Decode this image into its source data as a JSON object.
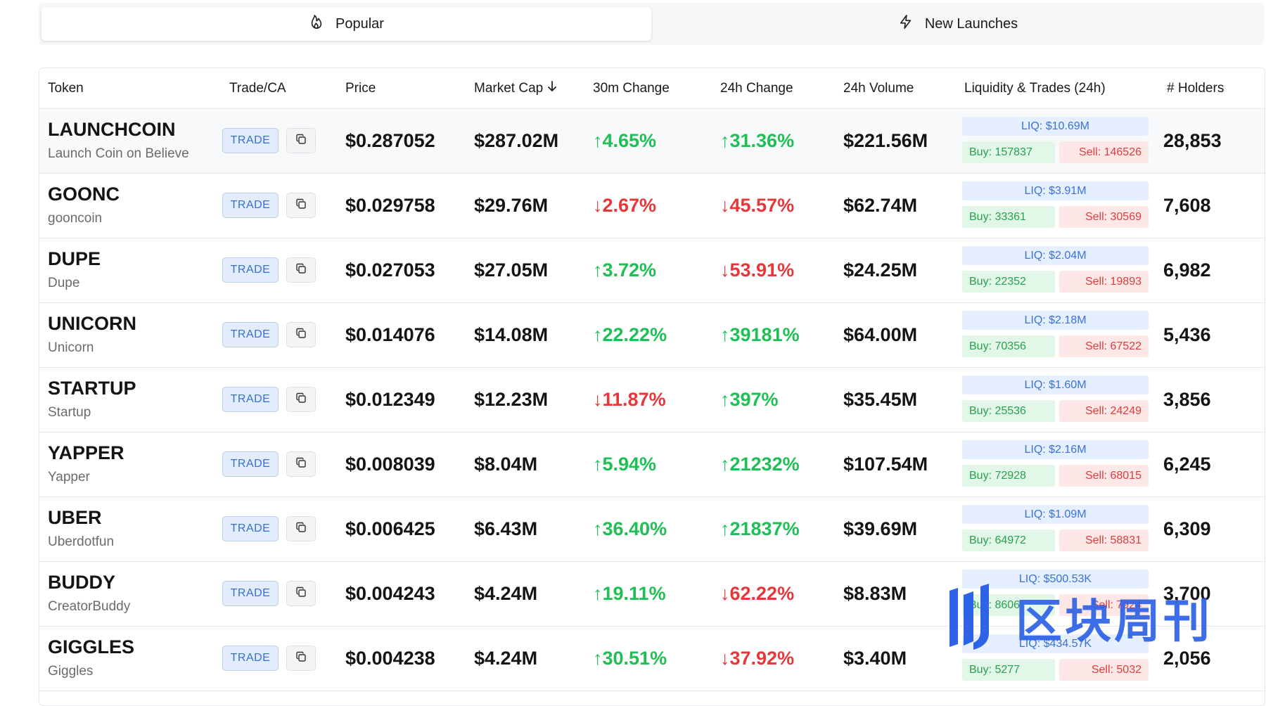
{
  "tabs": [
    {
      "label": "Popular",
      "icon": "flame-icon",
      "active": true
    },
    {
      "label": "New Launches",
      "icon": "lightning-icon",
      "active": false
    }
  ],
  "table": {
    "headers": {
      "token": "Token",
      "trade": "Trade/CA",
      "price": "Price",
      "market_cap": "Market Cap",
      "change_30m": "30m Change",
      "change_24h": "24h Change",
      "volume_24h": "24h Volume",
      "liquidity": "Liquidity & Trades (24h)",
      "holders": "# Holders"
    },
    "sort": {
      "column": "market_cap",
      "direction": "desc"
    },
    "trade_label": "TRADE",
    "rows": [
      {
        "symbol": "LAUNCHCOIN",
        "name": "Launch Coin on Believe",
        "price": "$0.287052",
        "market_cap": "$287.02M",
        "change_30m": "↑4.65%",
        "change_30m_dir": "up",
        "change_24h": "↑31.36%",
        "change_24h_dir": "up",
        "volume_24h": "$221.56M",
        "liq": "LIQ: $10.69M",
        "buy": "Buy: 157837",
        "sell": "Sell: 146526",
        "holders": "28,853"
      },
      {
        "symbol": "GOONC",
        "name": "gooncoin",
        "price": "$0.029758",
        "market_cap": "$29.76M",
        "change_30m": "↓2.67%",
        "change_30m_dir": "down",
        "change_24h": "↓45.57%",
        "change_24h_dir": "down",
        "volume_24h": "$62.74M",
        "liq": "LIQ: $3.91M",
        "buy": "Buy: 33361",
        "sell": "Sell: 30569",
        "holders": "7,608"
      },
      {
        "symbol": "DUPE",
        "name": "Dupe",
        "price": "$0.027053",
        "market_cap": "$27.05M",
        "change_30m": "↑3.72%",
        "change_30m_dir": "up",
        "change_24h": "↓53.91%",
        "change_24h_dir": "down",
        "volume_24h": "$24.25M",
        "liq": "LIQ: $2.04M",
        "buy": "Buy: 22352",
        "sell": "Sell: 19893",
        "holders": "6,982"
      },
      {
        "symbol": "UNICORN",
        "name": "Unicorn",
        "price": "$0.014076",
        "market_cap": "$14.08M",
        "change_30m": "↑22.22%",
        "change_30m_dir": "up",
        "change_24h": "↑39181%",
        "change_24h_dir": "up",
        "volume_24h": "$64.00M",
        "liq": "LIQ: $2.18M",
        "buy": "Buy: 70356",
        "sell": "Sell: 67522",
        "holders": "5,436"
      },
      {
        "symbol": "STARTUP",
        "name": "Startup",
        "price": "$0.012349",
        "market_cap": "$12.23M",
        "change_30m": "↓11.87%",
        "change_30m_dir": "down",
        "change_24h": "↑397%",
        "change_24h_dir": "up",
        "volume_24h": "$35.45M",
        "liq": "LIQ: $1.60M",
        "buy": "Buy: 25536",
        "sell": "Sell: 24249",
        "holders": "3,856"
      },
      {
        "symbol": "YAPPER",
        "name": "Yapper",
        "price": "$0.008039",
        "market_cap": "$8.04M",
        "change_30m": "↑5.94%",
        "change_30m_dir": "up",
        "change_24h": "↑21232%",
        "change_24h_dir": "up",
        "volume_24h": "$107.54M",
        "liq": "LIQ: $2.16M",
        "buy": "Buy: 72928",
        "sell": "Sell: 68015",
        "holders": "6,245"
      },
      {
        "symbol": "UBER",
        "name": "Uberdotfun",
        "price": "$0.006425",
        "market_cap": "$6.43M",
        "change_30m": "↑36.40%",
        "change_30m_dir": "up",
        "change_24h": "↑21837%",
        "change_24h_dir": "up",
        "volume_24h": "$39.69M",
        "liq": "LIQ: $1.09M",
        "buy": "Buy: 64972",
        "sell": "Sell: 58831",
        "holders": "6,309"
      },
      {
        "symbol": "BUDDY",
        "name": "CreatorBuddy",
        "price": "$0.004243",
        "market_cap": "$4.24M",
        "change_30m": "↑19.11%",
        "change_30m_dir": "up",
        "change_24h": "↓62.22%",
        "change_24h_dir": "down",
        "volume_24h": "$8.83M",
        "liq": "LIQ: $500.53K",
        "buy": "Buy: 8606",
        "sell": "Sell: 7924",
        "holders": "3,700"
      },
      {
        "symbol": "GIGGLES",
        "name": "Giggles",
        "price": "$0.004238",
        "market_cap": "$4.24M",
        "change_30m": "↑30.51%",
        "change_30m_dir": "up",
        "change_24h": "↓37.92%",
        "change_24h_dir": "down",
        "volume_24h": "$3.40M",
        "liq": "LIQ: $434.57K",
        "buy": "Buy: 5277",
        "sell": "Sell: 5032",
        "holders": "2,056"
      }
    ]
  },
  "watermark": {
    "text": "区块周刊"
  },
  "colors": {
    "up": "#1fbf55",
    "down": "#e5383b",
    "trade_blue": "#3470d4",
    "watermark_blue": "#2f63e6"
  }
}
